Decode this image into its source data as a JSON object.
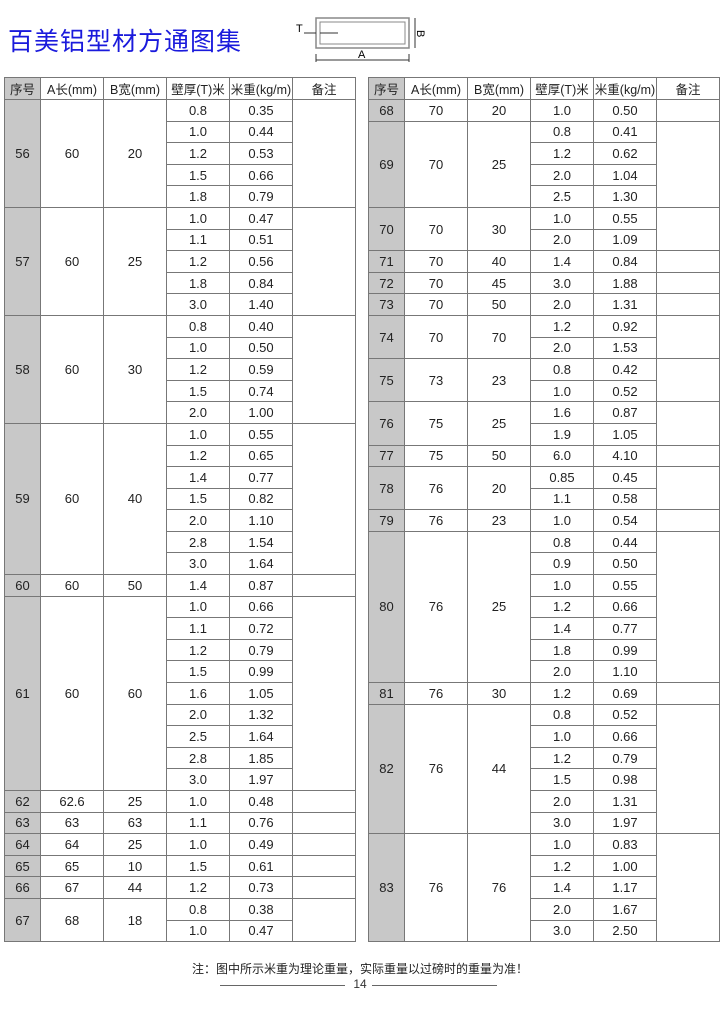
{
  "title": "百美铝型材方通图集",
  "diagram": {
    "label_t": "T",
    "label_a": "A",
    "label_b": "B"
  },
  "headers": [
    "序号",
    "A长(mm)",
    "B宽(mm)",
    "壁厚(T)米",
    "米重(kg/m)",
    "备注"
  ],
  "left_table": [
    {
      "no": "56",
      "a": "60",
      "b": "20",
      "rows": [
        [
          "0.8",
          "0.35"
        ],
        [
          "1.0",
          "0.44"
        ],
        [
          "1.2",
          "0.53"
        ],
        [
          "1.5",
          "0.66"
        ],
        [
          "1.8",
          "0.79"
        ]
      ]
    },
    {
      "no": "57",
      "a": "60",
      "b": "25",
      "rows": [
        [
          "1.0",
          "0.47"
        ],
        [
          "1.1",
          "0.51"
        ],
        [
          "1.2",
          "0.56"
        ],
        [
          "1.8",
          "0.84"
        ],
        [
          "3.0",
          "1.40"
        ]
      ]
    },
    {
      "no": "58",
      "a": "60",
      "b": "30",
      "rows": [
        [
          "0.8",
          "0.40"
        ],
        [
          "1.0",
          "0.50"
        ],
        [
          "1.2",
          "0.59"
        ],
        [
          "1.5",
          "0.74"
        ],
        [
          "2.0",
          "1.00"
        ]
      ]
    },
    {
      "no": "59",
      "a": "60",
      "b": "40",
      "rows": [
        [
          "1.0",
          "0.55"
        ],
        [
          "1.2",
          "0.65"
        ],
        [
          "1.4",
          "0.77"
        ],
        [
          "1.5",
          "0.82"
        ],
        [
          "2.0",
          "1.10"
        ],
        [
          "2.8",
          "1.54"
        ],
        [
          "3.0",
          "1.64"
        ]
      ]
    },
    {
      "no": "60",
      "a": "60",
      "b": "50",
      "rows": [
        [
          "1.4",
          "0.87"
        ]
      ]
    },
    {
      "no": "61",
      "a": "60",
      "b": "60",
      "rows": [
        [
          "1.0",
          "0.66"
        ],
        [
          "1.1",
          "0.72"
        ],
        [
          "1.2",
          "0.79"
        ],
        [
          "1.5",
          "0.99"
        ],
        [
          "1.6",
          "1.05"
        ],
        [
          "2.0",
          "1.32"
        ],
        [
          "2.5",
          "1.64"
        ],
        [
          "2.8",
          "1.85"
        ],
        [
          "3.0",
          "1.97"
        ]
      ]
    },
    {
      "no": "62",
      "a": "62.6",
      "b": "25",
      "rows": [
        [
          "1.0",
          "0.48"
        ]
      ]
    },
    {
      "no": "63",
      "a": "63",
      "b": "63",
      "rows": [
        [
          "1.1",
          "0.76"
        ]
      ]
    },
    {
      "no": "64",
      "a": "64",
      "b": "25",
      "rows": [
        [
          "1.0",
          "0.49"
        ]
      ]
    },
    {
      "no": "65",
      "a": "65",
      "b": "10",
      "rows": [
        [
          "1.5",
          "0.61"
        ]
      ]
    },
    {
      "no": "66",
      "a": "67",
      "b": "44",
      "rows": [
        [
          "1.2",
          "0.73"
        ]
      ]
    },
    {
      "no": "67",
      "a": "68",
      "b": "18",
      "rows": [
        [
          "0.8",
          "0.38"
        ],
        [
          "1.0",
          "0.47"
        ]
      ]
    }
  ],
  "right_table": [
    {
      "no": "68",
      "a": "70",
      "b": "20",
      "rows": [
        [
          "1.0",
          "0.50"
        ]
      ]
    },
    {
      "no": "69",
      "a": "70",
      "b": "25",
      "rows": [
        [
          "0.8",
          "0.41"
        ],
        [
          "1.2",
          "0.62"
        ],
        [
          "2.0",
          "1.04"
        ],
        [
          "2.5",
          "1.30"
        ]
      ]
    },
    {
      "no": "70",
      "a": "70",
      "b": "30",
      "rows": [
        [
          "1.0",
          "0.55"
        ],
        [
          "2.0",
          "1.09"
        ]
      ]
    },
    {
      "no": "71",
      "a": "70",
      "b": "40",
      "rows": [
        [
          "1.4",
          "0.84"
        ]
      ]
    },
    {
      "no": "72",
      "a": "70",
      "b": "45",
      "rows": [
        [
          "3.0",
          "1.88"
        ]
      ]
    },
    {
      "no": "73",
      "a": "70",
      "b": "50",
      "rows": [
        [
          "2.0",
          "1.31"
        ]
      ]
    },
    {
      "no": "74",
      "a": "70",
      "b": "70",
      "rows": [
        [
          "1.2",
          "0.92"
        ],
        [
          "2.0",
          "1.53"
        ]
      ]
    },
    {
      "no": "75",
      "a": "73",
      "b": "23",
      "rows": [
        [
          "0.8",
          "0.42"
        ],
        [
          "1.0",
          "0.52"
        ]
      ]
    },
    {
      "no": "76",
      "a": "75",
      "b": "25",
      "rows": [
        [
          "1.6",
          "0.87"
        ],
        [
          "1.9",
          "1.05"
        ]
      ]
    },
    {
      "no": "77",
      "a": "75",
      "b": "50",
      "rows": [
        [
          "6.0",
          "4.10"
        ]
      ]
    },
    {
      "no": "78",
      "a": "76",
      "b": "20",
      "rows": [
        [
          "0.85",
          "0.45"
        ],
        [
          "1.1",
          "0.58"
        ]
      ]
    },
    {
      "no": "79",
      "a": "76",
      "b": "23",
      "rows": [
        [
          "1.0",
          "0.54"
        ]
      ]
    },
    {
      "no": "80",
      "a": "76",
      "b": "25",
      "rows": [
        [
          "0.8",
          "0.44"
        ],
        [
          "0.9",
          "0.50"
        ],
        [
          "1.0",
          "0.55"
        ],
        [
          "1.2",
          "0.66"
        ],
        [
          "1.4",
          "0.77"
        ],
        [
          "1.8",
          "0.99"
        ],
        [
          "2.0",
          "1.10"
        ]
      ]
    },
    {
      "no": "81",
      "a": "76",
      "b": "30",
      "rows": [
        [
          "1.2",
          "0.69"
        ]
      ]
    },
    {
      "no": "82",
      "a": "76",
      "b": "44",
      "rows": [
        [
          "0.8",
          "0.52"
        ],
        [
          "1.0",
          "0.66"
        ],
        [
          "1.2",
          "0.79"
        ],
        [
          "1.5",
          "0.98"
        ],
        [
          "2.0",
          "1.31"
        ],
        [
          "3.0",
          "1.97"
        ]
      ]
    },
    {
      "no": "83",
      "a": "76",
      "b": "76",
      "rows": [
        [
          "1.0",
          "0.83"
        ],
        [
          "1.2",
          "1.00"
        ],
        [
          "1.4",
          "1.17"
        ],
        [
          "2.0",
          "1.67"
        ],
        [
          "3.0",
          "2.50"
        ]
      ]
    }
  ],
  "footer_note": "注：图中所示米重为理论重量，实际重量以过磅时的重量为准！",
  "page_number": "14"
}
